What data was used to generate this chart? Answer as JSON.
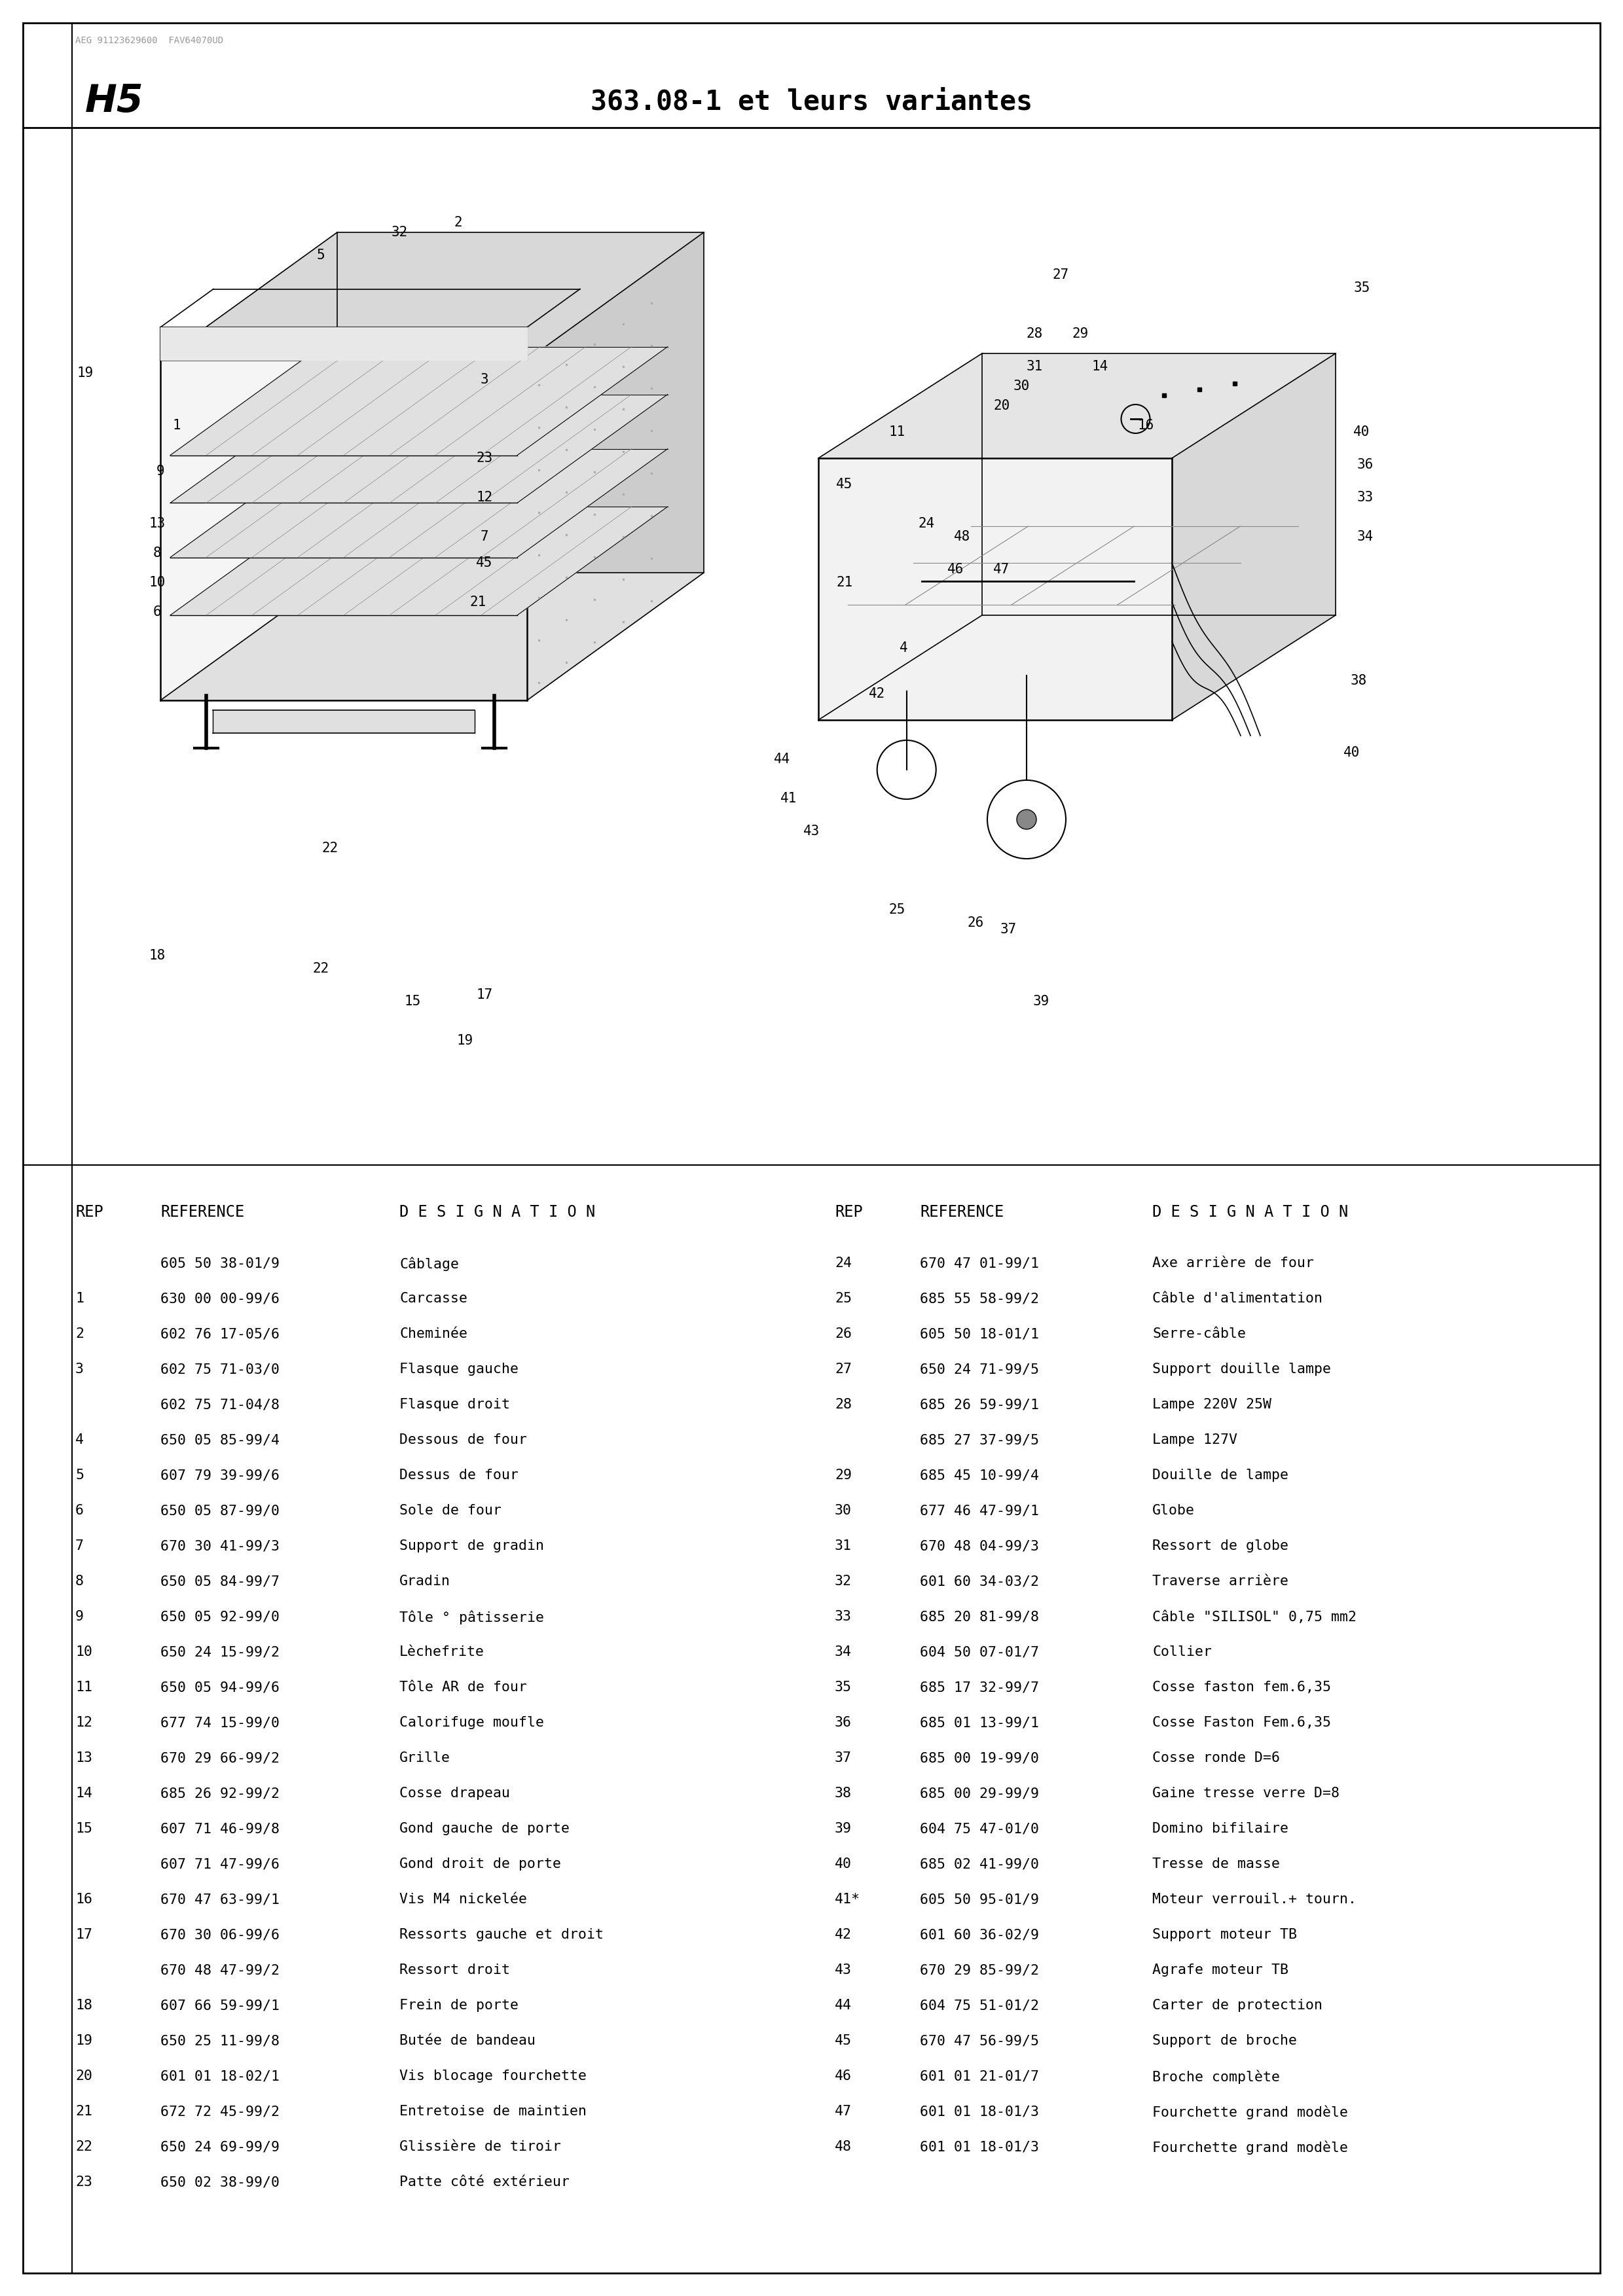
{
  "page_id": "H5",
  "title": "363.08-1 et leurs variantes",
  "bg": "#ffffff",
  "small_header_text": "AEG 91123629600  FAV64070UD",
  "parts_left": [
    {
      "rep": "",
      "ref": "605 50 38-01/9",
      "des": "Câblage"
    },
    {
      "rep": "1",
      "ref": "630 00 00-99/6",
      "des": "Carcasse"
    },
    {
      "rep": "2",
      "ref": "602 76 17-05/6",
      "des": "Cheminée"
    },
    {
      "rep": "3",
      "ref": "602 75 71-03/0",
      "des": "Flasque gauche"
    },
    {
      "rep": "",
      "ref": "602 75 71-04/8",
      "des": "Flasque droit"
    },
    {
      "rep": "4",
      "ref": "650 05 85-99/4",
      "des": "Dessous de four"
    },
    {
      "rep": "5",
      "ref": "607 79 39-99/6",
      "des": "Dessus de four"
    },
    {
      "rep": "6",
      "ref": "650 05 87-99/0",
      "des": "Sole de four"
    },
    {
      "rep": "7",
      "ref": "670 30 41-99/3",
      "des": "Support de gradin"
    },
    {
      "rep": "8",
      "ref": "650 05 84-99/7",
      "des": "Gradin"
    },
    {
      "rep": "9",
      "ref": "650 05 92-99/0",
      "des": "Tôle ° pâtisserie"
    },
    {
      "rep": "10",
      "ref": "650 24 15-99/2",
      "des": "Lèchefrite"
    },
    {
      "rep": "11",
      "ref": "650 05 94-99/6",
      "des": "Tôle AR de four"
    },
    {
      "rep": "12",
      "ref": "677 74 15-99/0",
      "des": "Calorifuge moufle"
    },
    {
      "rep": "13",
      "ref": "670 29 66-99/2",
      "des": "Grille"
    },
    {
      "rep": "14",
      "ref": "685 26 92-99/2",
      "des": "Cosse drapeau"
    },
    {
      "rep": "15",
      "ref": "607 71 46-99/8",
      "des": "Gond gauche de porte"
    },
    {
      "rep": "",
      "ref": "607 71 47-99/6",
      "des": "Gond droit de porte"
    },
    {
      "rep": "16",
      "ref": "670 47 63-99/1",
      "des": "Vis M4 nickelée"
    },
    {
      "rep": "17",
      "ref": "670 30 06-99/6",
      "des": "Ressorts gauche et droit"
    },
    {
      "rep": "",
      "ref": "670 48 47-99/2",
      "des": "Ressort droit"
    },
    {
      "rep": "18",
      "ref": "607 66 59-99/1",
      "des": "Frein de porte"
    },
    {
      "rep": "19",
      "ref": "650 25 11-99/8",
      "des": "Butée de bandeau"
    },
    {
      "rep": "20",
      "ref": "601 01 18-02/1",
      "des": "Vis blocage fourchette"
    },
    {
      "rep": "21",
      "ref": "672 72 45-99/2",
      "des": "Entretoise de maintien"
    },
    {
      "rep": "22",
      "ref": "650 24 69-99/9",
      "des": "Glissière de tiroir"
    },
    {
      "rep": "23",
      "ref": "650 02 38-99/0",
      "des": "Patte côté extérieur"
    }
  ],
  "parts_right": [
    {
      "rep": "24",
      "ref": "670 47 01-99/1",
      "des": "Axe arrière de four"
    },
    {
      "rep": "25",
      "ref": "685 55 58-99/2",
      "des": "Câble d'alimentation"
    },
    {
      "rep": "26",
      "ref": "605 50 18-01/1",
      "des": "Serre-câble"
    },
    {
      "rep": "27",
      "ref": "650 24 71-99/5",
      "des": "Support douille lampe"
    },
    {
      "rep": "28",
      "ref": "685 26 59-99/1",
      "des": "Lampe 220V 25W"
    },
    {
      "rep": "",
      "ref": "685 27 37-99/5",
      "des": "Lampe 127V"
    },
    {
      "rep": "29",
      "ref": "685 45 10-99/4",
      "des": "Douille de lampe"
    },
    {
      "rep": "30",
      "ref": "677 46 47-99/1",
      "des": "Globe"
    },
    {
      "rep": "31",
      "ref": "670 48 04-99/3",
      "des": "Ressort de globe"
    },
    {
      "rep": "32",
      "ref": "601 60 34-03/2",
      "des": "Traverse arrière"
    },
    {
      "rep": "33",
      "ref": "685 20 81-99/8",
      "des": "Câble \"SILISOL\" 0,75 mm2"
    },
    {
      "rep": "34",
      "ref": "604 50 07-01/7",
      "des": "Collier"
    },
    {
      "rep": "35",
      "ref": "685 17 32-99/7",
      "des": "Cosse faston fem.6,35"
    },
    {
      "rep": "36",
      "ref": "685 01 13-99/1",
      "des": "Cosse Faston Fem.6,35"
    },
    {
      "rep": "37",
      "ref": "685 00 19-99/0",
      "des": "Cosse ronde D=6"
    },
    {
      "rep": "38",
      "ref": "685 00 29-99/9",
      "des": "Gaine tresse verre D=8"
    },
    {
      "rep": "39",
      "ref": "604 75 47-01/0",
      "des": "Domino bifilaire"
    },
    {
      "rep": "40",
      "ref": "685 02 41-99/0",
      "des": "Tresse de masse"
    },
    {
      "rep": "41*",
      "ref": "605 50 95-01/9",
      "des": "Moteur verrouil.+ tourn."
    },
    {
      "rep": "42",
      "ref": "601 60 36-02/9",
      "des": "Support moteur TB"
    },
    {
      "rep": "43",
      "ref": "670 29 85-99/2",
      "des": "Agrafe moteur TB"
    },
    {
      "rep": "44",
      "ref": "604 75 51-01/2",
      "des": "Carter de protection"
    },
    {
      "rep": "45",
      "ref": "670 47 56-99/5",
      "des": "Support de broche"
    },
    {
      "rep": "46",
      "ref": "601 01 21-01/7",
      "des": "Broche complète"
    },
    {
      "rep": "47",
      "ref": "601 01 18-01/3",
      "des": "Fourchette grand modèle"
    },
    {
      "rep": "48",
      "ref": "601 01 18-01/3",
      "des": "Fourchette grand modèle"
    }
  ]
}
